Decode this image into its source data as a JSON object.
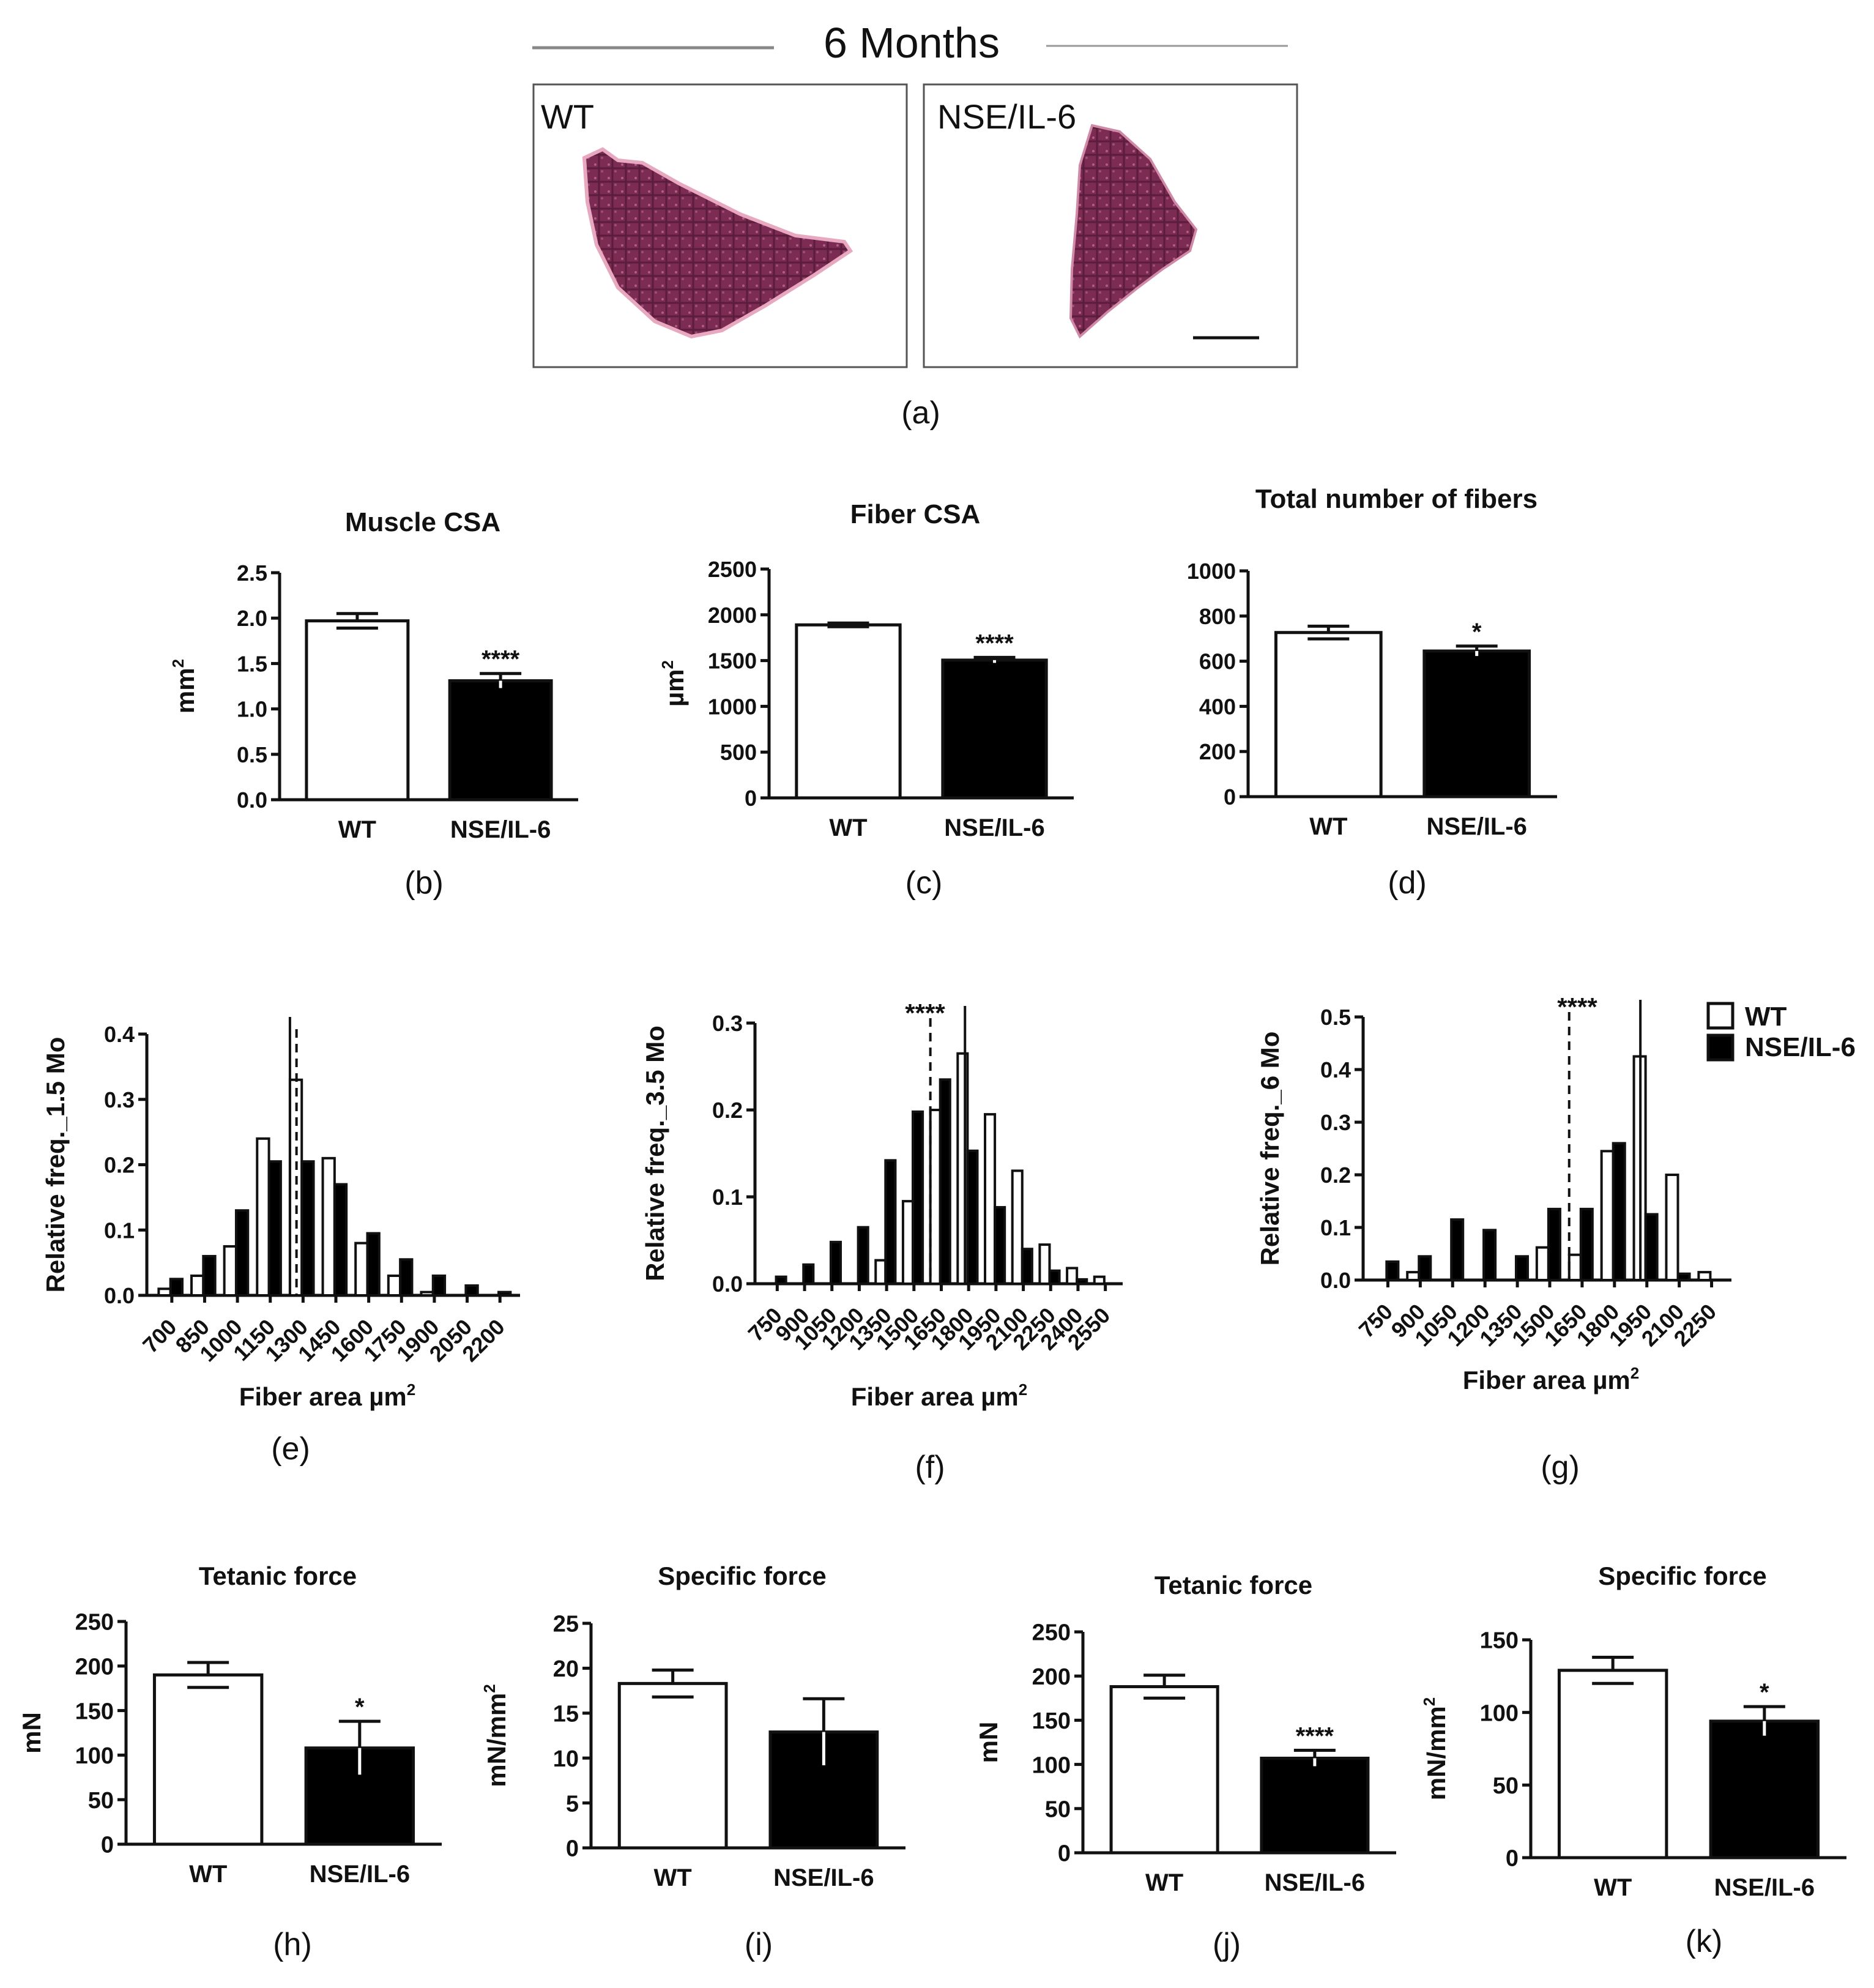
{
  "header": {
    "title": "6 Months",
    "panel_wt_label": "WT",
    "panel_ko_label": "NSE/IL-6",
    "panel_letter": "(a)"
  },
  "colors": {
    "wt_fill": "#ffffff",
    "ko_fill": "#000000",
    "tissue_dark": "#6e2346",
    "tissue_mid": "#9a3e68",
    "tissue_light": "#e7a8c0"
  },
  "legend": {
    "wt": "WT",
    "ko": "NSE/IL-6"
  },
  "chart_data": [
    {
      "id": "b",
      "type": "bar",
      "letter": "(b)",
      "title": "Muscle CSA",
      "ylabel": "mm",
      "ylabel_sup": "2",
      "categories": [
        "WT",
        "NSE/IL-6"
      ],
      "values": [
        1.97,
        1.31
      ],
      "errors": [
        0.08,
        0.08
      ],
      "significance": [
        "",
        "****"
      ],
      "ylim": [
        0,
        2.5
      ],
      "yticks": [
        0.0,
        0.5,
        1.0,
        1.5,
        2.0,
        2.5
      ],
      "ytick_labels": [
        "0.0",
        "0.5",
        "1.0",
        "1.5",
        "2.0",
        "2.5"
      ]
    },
    {
      "id": "c",
      "type": "bar",
      "letter": "(c)",
      "title": "Fiber CSA",
      "ylabel": "µm",
      "ylabel_sup": "2",
      "categories": [
        "WT",
        "NSE/IL-6"
      ],
      "values": [
        1890,
        1505
      ],
      "errors": [
        20,
        30
      ],
      "significance": [
        "",
        "****"
      ],
      "ylim": [
        0,
        2500
      ],
      "yticks": [
        0,
        500,
        1000,
        1500,
        2000,
        2500
      ],
      "ytick_labels": [
        "0",
        "500",
        "1000",
        "1500",
        "2000",
        "2500"
      ]
    },
    {
      "id": "d",
      "type": "bar",
      "letter": "(d)",
      "title": "Total number of fibers",
      "ylabel": "",
      "ylabel_sup": "",
      "categories": [
        "WT",
        "NSE/IL-6"
      ],
      "values": [
        727,
        645
      ],
      "errors": [
        28,
        22
      ],
      "significance": [
        "",
        "*"
      ],
      "ylim": [
        0,
        1000
      ],
      "yticks": [
        0,
        200,
        400,
        600,
        800,
        1000
      ],
      "ytick_labels": [
        "0",
        "200",
        "400",
        "600",
        "800",
        "1000"
      ]
    },
    {
      "id": "e",
      "type": "bar",
      "subtype": "histogram",
      "letter": "(e)",
      "ylabel": "Relative freq._1.5 Mo",
      "xlabel": "Fiber area µm",
      "xlabel_sup": "2",
      "categories": [
        "700",
        "850",
        "1000",
        "1150",
        "1300",
        "1450",
        "1600",
        "1750",
        "1900",
        "2050",
        "2200"
      ],
      "series": [
        {
          "name": "WT",
          "values": [
            0.01,
            0.03,
            0.075,
            0.24,
            0.33,
            0.21,
            0.08,
            0.03,
            0.005,
            0.0,
            0.0
          ]
        },
        {
          "name": "NSE/IL-6",
          "values": [
            0.025,
            0.06,
            0.13,
            0.205,
            0.205,
            0.17,
            0.095,
            0.055,
            0.03,
            0.015,
            0.005
          ]
        }
      ],
      "median_wt": 1240,
      "median_ko": 1270,
      "significance": "",
      "ylim": [
        0,
        0.4
      ],
      "yticks": [
        0.0,
        0.1,
        0.2,
        0.3,
        0.4
      ],
      "ytick_labels": [
        "0.0",
        "0.1",
        "0.2",
        "0.3",
        "0.4"
      ]
    },
    {
      "id": "f",
      "type": "bar",
      "subtype": "histogram",
      "letter": "(f)",
      "ylabel": "Relative freq._3.5 Mo",
      "xlabel": "Fiber area µm",
      "xlabel_sup": "2",
      "categories": [
        "750",
        "900",
        "1050",
        "1200",
        "1350",
        "1500",
        "1650",
        "1800",
        "1950",
        "2100",
        "2250",
        "2400",
        "2550"
      ],
      "series": [
        {
          "name": "WT",
          "values": [
            0.0,
            0.0,
            0.0,
            0.0,
            0.027,
            0.095,
            0.2,
            0.265,
            0.195,
            0.13,
            0.045,
            0.018,
            0.008
          ]
        },
        {
          "name": "NSE/IL-6",
          "values": [
            0.008,
            0.022,
            0.048,
            0.065,
            0.142,
            0.198,
            0.235,
            0.153,
            0.088,
            0.04,
            0.015,
            0.005,
            0.0
          ]
        }
      ],
      "median_wt": 1780,
      "median_ko": 1590,
      "significance": "****",
      "ylim": [
        0,
        0.3
      ],
      "yticks": [
        0.0,
        0.1,
        0.2,
        0.3
      ],
      "ytick_labels": [
        "0.0",
        "0.1",
        "0.2",
        "0.3"
      ]
    },
    {
      "id": "g",
      "type": "bar",
      "subtype": "histogram",
      "letter": "(g)",
      "ylabel": "Relative freq._6 Mo",
      "xlabel": "Fiber area µm",
      "xlabel_sup": "2",
      "categories": [
        "750",
        "900",
        "1050",
        "1200",
        "1350",
        "1500",
        "1650",
        "1800",
        "1950",
        "2100",
        "2250"
      ],
      "series": [
        {
          "name": "WT",
          "values": [
            0.0,
            0.015,
            0.0,
            0.0,
            0.0,
            0.062,
            0.048,
            0.245,
            0.425,
            0.2,
            0.015
          ]
        },
        {
          "name": "NSE/IL-6",
          "values": [
            0.035,
            0.045,
            0.115,
            0.095,
            0.045,
            0.135,
            0.135,
            0.26,
            0.125,
            0.012,
            0.0
          ]
        }
      ],
      "median_wt": 1920,
      "median_ko": 1590,
      "significance": "****",
      "ylim": [
        0,
        0.5
      ],
      "yticks": [
        0.0,
        0.1,
        0.2,
        0.3,
        0.4,
        0.5
      ],
      "ytick_labels": [
        "0.0",
        "0.1",
        "0.2",
        "0.3",
        "0.4",
        "0.5"
      ]
    },
    {
      "id": "h",
      "type": "bar",
      "letter": "(h)",
      "title": "Tetanic force",
      "ylabel": "mN",
      "ylabel_sup": "",
      "categories": [
        "WT",
        "NSE/IL-6"
      ],
      "values": [
        190,
        108
      ],
      "errors": [
        14,
        30
      ],
      "significance": [
        "",
        "*"
      ],
      "ylim": [
        0,
        250
      ],
      "yticks": [
        0,
        50,
        100,
        150,
        200,
        250
      ],
      "ytick_labels": [
        "0",
        "50",
        "100",
        "150",
        "200",
        "250"
      ]
    },
    {
      "id": "i",
      "type": "bar",
      "letter": "(i)",
      "title": "Specific force",
      "ylabel": "mN/mm",
      "ylabel_sup": "2",
      "categories": [
        "WT",
        "NSE/IL-6"
      ],
      "values": [
        18.3,
        12.9
      ],
      "errors": [
        1.5,
        3.7
      ],
      "significance": [
        "",
        ""
      ],
      "ylim": [
        0,
        25
      ],
      "yticks": [
        0,
        5,
        10,
        15,
        20,
        25
      ],
      "ytick_labels": [
        "0",
        "5",
        "10",
        "15",
        "20",
        "25"
      ]
    },
    {
      "id": "j",
      "type": "bar",
      "letter": "(j)",
      "title": "Tetanic force",
      "ylabel": "mN",
      "ylabel_sup": "",
      "categories": [
        "WT",
        "NSE/IL-6"
      ],
      "values": [
        188,
        107
      ],
      "errors": [
        13,
        9
      ],
      "significance": [
        "",
        "****"
      ],
      "ylim": [
        0,
        250
      ],
      "yticks": [
        0,
        50,
        100,
        150,
        200,
        250
      ],
      "ytick_labels": [
        "0",
        "50",
        "100",
        "150",
        "200",
        "250"
      ]
    },
    {
      "id": "k",
      "type": "bar",
      "letter": "(k)",
      "title": "Specific force",
      "ylabel": "mN/mm",
      "ylabel_sup": "2",
      "categories": [
        "WT",
        "NSE/IL-6"
      ],
      "values": [
        129,
        94
      ],
      "errors": [
        9,
        10
      ],
      "significance": [
        "",
        "*"
      ],
      "ylim": [
        0,
        150
      ],
      "yticks": [
        0,
        50,
        100,
        150
      ],
      "ytick_labels": [
        "0",
        "50",
        "100",
        "150"
      ]
    }
  ]
}
